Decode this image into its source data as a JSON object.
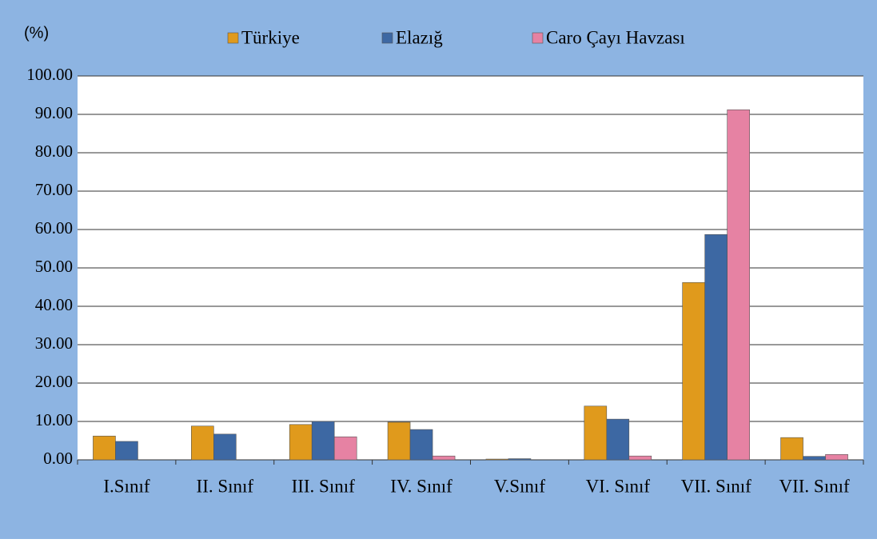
{
  "chart_data": {
    "type": "bar",
    "y_label": "(%)",
    "categories": [
      "I.Sınıf",
      "II. Sınıf",
      "III. Sınıf",
      "IV. Sınıf",
      "V.Sınıf",
      "VI. Sınıf",
      "VII. Sınıf",
      "VII. Sınıf"
    ],
    "series": [
      {
        "name": "Türkiye",
        "color": "#e09a1c",
        "values": [
          6.2,
          8.8,
          9.2,
          9.8,
          0.2,
          14.0,
          46.2,
          5.8
        ]
      },
      {
        "name": "Elazığ",
        "color": "#3d68a3",
        "values": [
          4.8,
          6.7,
          10.0,
          7.9,
          0.3,
          10.6,
          58.7,
          0.9
        ]
      },
      {
        "name": "Caro Çayı Havzası",
        "color": "#e682a3",
        "values": [
          0,
          0,
          6.0,
          1.0,
          0,
          1.0,
          91.2,
          1.4
        ]
      }
    ],
    "ylim": [
      0,
      100
    ],
    "yticks": [
      {
        "value": 0,
        "label": "0.00"
      },
      {
        "value": 10,
        "label": "10.00"
      },
      {
        "value": 20,
        "label": "20.00"
      },
      {
        "value": 30,
        "label": "30.00"
      },
      {
        "value": 40,
        "label": "40.00"
      },
      {
        "value": 50,
        "label": "50.00"
      },
      {
        "value": 60,
        "label": "60.00"
      },
      {
        "value": 70,
        "label": "70.00"
      },
      {
        "value": 80,
        "label": "80.00"
      },
      {
        "value": 90,
        "label": "90.00"
      },
      {
        "value": 100,
        "label": "100.00"
      }
    ],
    "grid": true,
    "legend": "top"
  }
}
